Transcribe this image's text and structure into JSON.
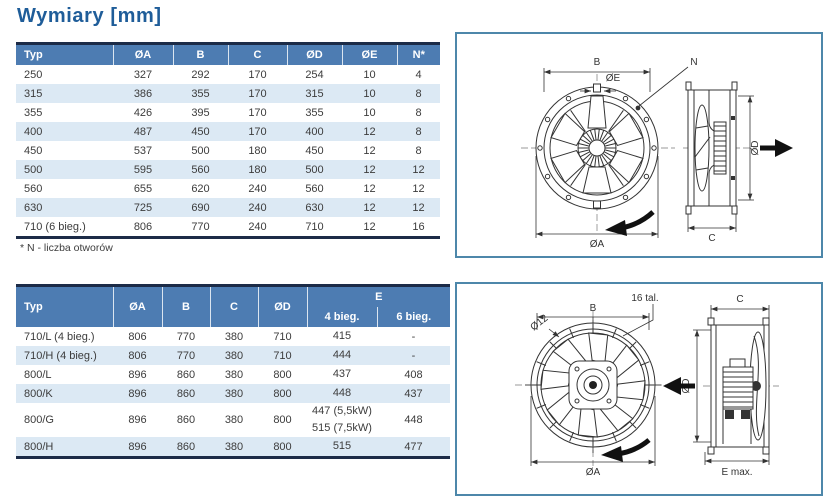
{
  "page": {
    "title": "Wymiary [mm]"
  },
  "colors": {
    "header_bg": "#4d7cb2",
    "dark_border": "#1c2b47",
    "alt_row": "#dce9f4",
    "title_blue": "#1f5d99",
    "panel_border": "#4d87aa"
  },
  "table1": {
    "columns": [
      "Typ",
      "ØA",
      "B",
      "C",
      "ØD",
      "ØE",
      "N*"
    ],
    "rows": [
      [
        "250",
        "327",
        "292",
        "170",
        "254",
        "10",
        "4"
      ],
      [
        "315",
        "386",
        "355",
        "170",
        "315",
        "10",
        "8"
      ],
      [
        "355",
        "426",
        "395",
        "170",
        "355",
        "10",
        "8"
      ],
      [
        "400",
        "487",
        "450",
        "170",
        "400",
        "12",
        "8"
      ],
      [
        "450",
        "537",
        "500",
        "180",
        "450",
        "12",
        "8"
      ],
      [
        "500",
        "595",
        "560",
        "180",
        "500",
        "12",
        "12"
      ],
      [
        "560",
        "655",
        "620",
        "240",
        "560",
        "12",
        "12"
      ],
      [
        "630",
        "725",
        "690",
        "240",
        "630",
        "12",
        "12"
      ],
      [
        "710 (6 bieg.)",
        "806",
        "770",
        "240",
        "710",
        "12",
        "16"
      ]
    ],
    "footnote": "* N - liczba otworów"
  },
  "table2": {
    "columns": [
      "Typ",
      "ØA",
      "B",
      "C",
      "ØD"
    ],
    "e_group": {
      "label": "E",
      "sub": [
        "4 bieg.",
        "6 bieg."
      ]
    },
    "rows": [
      {
        "typ": "710/L (4 bieg.)",
        "oa": "806",
        "b": "770",
        "c": "380",
        "od": "710",
        "e4": "415",
        "e6": "-"
      },
      {
        "typ": "710/H (4 bieg.)",
        "oa": "806",
        "b": "770",
        "c": "380",
        "od": "710",
        "e4": "444",
        "e6": "-"
      },
      {
        "typ": "800/L",
        "oa": "896",
        "b": "860",
        "c": "380",
        "od": "800",
        "e4": "437",
        "e6": "408"
      },
      {
        "typ": "800/K",
        "oa": "896",
        "b": "860",
        "c": "380",
        "od": "800",
        "e4": "448",
        "e6": "437"
      },
      {
        "typ": "800/G",
        "oa": "896",
        "b": "860",
        "c": "380",
        "od": "800",
        "e4": "447 (5,5kW)",
        "e4b": "515 (7,5kW)",
        "e6": "448"
      },
      {
        "typ": "800/H",
        "oa": "896",
        "b": "860",
        "c": "380",
        "od": "800",
        "e4": "515",
        "e6": "477"
      }
    ]
  },
  "diagram1": {
    "labels": {
      "b": "B",
      "oe": "ØE",
      "n": "N",
      "oa": "ØA",
      "od": "ØD",
      "c": "C"
    }
  },
  "diagram2": {
    "labels": {
      "b": "B",
      "holes": "16 tal.",
      "o12": "Ø12",
      "oa": "ØA",
      "c": "C",
      "od": "ØD",
      "emax": "E max."
    }
  }
}
